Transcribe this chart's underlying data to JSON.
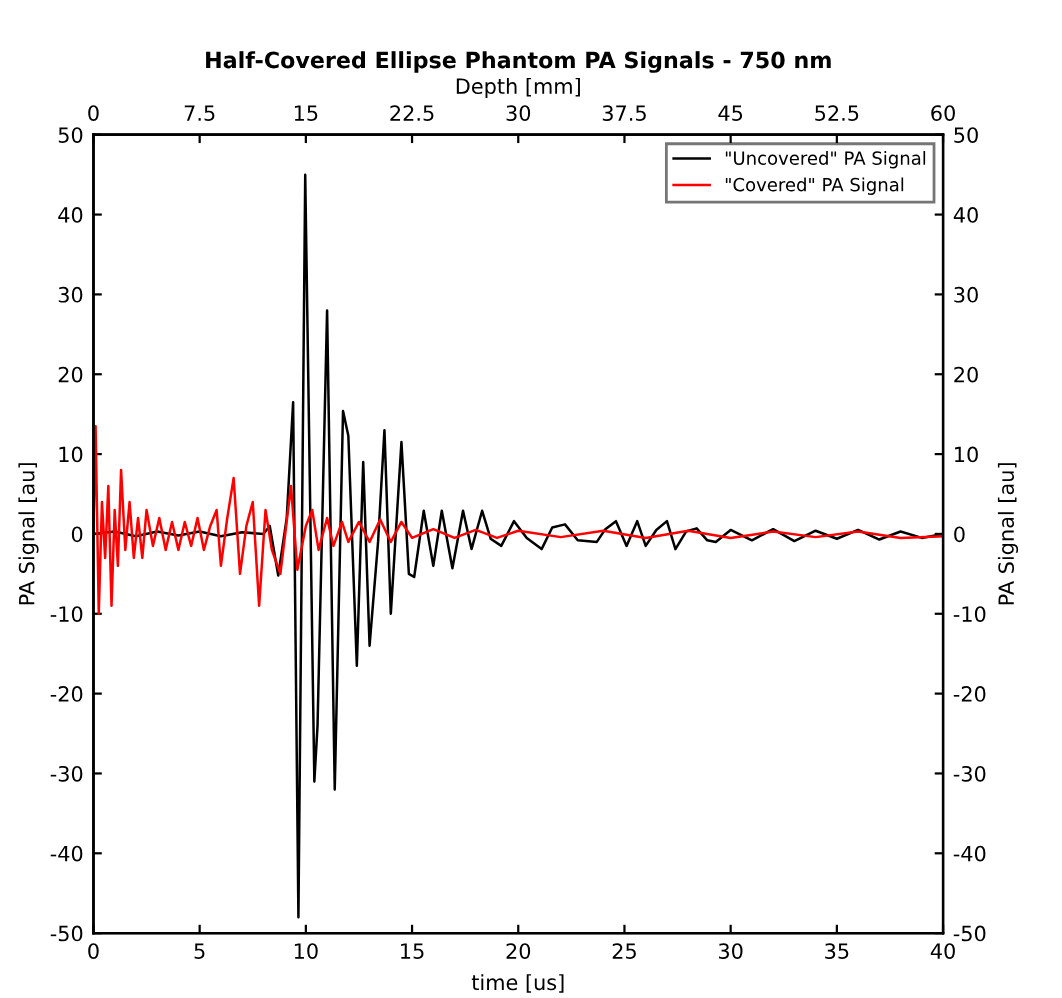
{
  "chart_data": {
    "type": "line",
    "title": "Half-Covered Ellipse Phantom PA Signals - 750 nm",
    "xlabel": "time [us]",
    "ylabel": "PA Signal [au]",
    "y2label": "PA Signal [au]",
    "x2label": "Depth [mm]",
    "xlim": [
      0,
      40
    ],
    "xticks": [
      0,
      5,
      10,
      15,
      20,
      25,
      30,
      35,
      40
    ],
    "ylim": [
      -50,
      50
    ],
    "yticks": [
      -50,
      -40,
      -30,
      -20,
      -10,
      0,
      10,
      20,
      30,
      40,
      50
    ],
    "y2lim": [
      -50,
      50
    ],
    "y2ticks": [
      -50,
      -40,
      -30,
      -20,
      -10,
      0,
      10,
      20,
      30,
      40,
      50
    ],
    "x2lim": [
      0,
      60
    ],
    "x2ticks": [
      0,
      7.5,
      15,
      22.5,
      30,
      37.5,
      45,
      52.5,
      60
    ],
    "grid": false,
    "legend": "top right",
    "marker": "none",
    "line_style": "solid",
    "series": [
      {
        "name": "\"Uncovered\" PA Signal",
        "color": "#000000",
        "x": [
          0,
          1,
          2,
          3,
          4,
          5,
          6,
          7,
          8,
          8.3,
          8.7,
          9.1,
          9.4,
          9.65,
          9.97,
          10.4,
          10.55,
          11.0,
          11.36,
          11.75,
          12.0,
          12.4,
          12.7,
          13.0,
          13.4,
          13.7,
          14.0,
          14.5,
          14.85,
          15.1,
          15.55,
          16.0,
          16.4,
          16.9,
          17.4,
          17.8,
          18.3,
          18.7,
          19.2,
          19.8,
          20.4,
          21.1,
          21.6,
          22.2,
          22.8,
          23.7,
          24.1,
          24.6,
          25.1,
          25.6,
          26.0,
          26.5,
          27.0,
          27.4,
          27.9,
          28.4,
          28.9,
          29.3,
          30,
          31,
          32,
          33,
          34,
          35,
          36,
          37,
          38,
          39,
          40
        ],
        "values": [
          0,
          0.3,
          -0.3,
          0.3,
          -0.2,
          0.3,
          -0.3,
          0.2,
          0,
          1,
          -5.2,
          2,
          16.5,
          -48,
          45,
          -31,
          -24,
          28,
          -32,
          15.4,
          12.3,
          -16.5,
          9,
          -14,
          -1,
          13,
          -10,
          11.5,
          -5,
          -5.4,
          2.9,
          -4,
          2.9,
          -4.3,
          2.9,
          -1.9,
          2.9,
          -0.6,
          -1.5,
          1.6,
          -0.5,
          -1.9,
          0.8,
          1.2,
          -0.8,
          -1,
          0.6,
          1.6,
          -1.5,
          1.6,
          -1.5,
          0.5,
          1.6,
          -1.9,
          0.3,
          0.7,
          -0.8,
          -1,
          0.5,
          -0.8,
          0.6,
          -0.9,
          0.4,
          -0.6,
          0.5,
          -0.7,
          0.3,
          -0.5,
          0
        ]
      },
      {
        "name": "\"Covered\" PA Signal",
        "color": "#ff0000",
        "x": [
          0,
          0.1,
          0.25,
          0.4,
          0.55,
          0.7,
          0.85,
          1.0,
          1.15,
          1.3,
          1.5,
          1.7,
          1.9,
          2.1,
          2.3,
          2.5,
          2.8,
          3.1,
          3.4,
          3.7,
          4.0,
          4.3,
          4.6,
          4.9,
          5.2,
          5.5,
          5.8,
          6.0,
          6.3,
          6.6,
          6.9,
          7.2,
          7.5,
          7.8,
          8.1,
          8.4,
          8.8,
          9.3,
          9.6,
          10.0,
          10.3,
          10.6,
          11.0,
          11.3,
          11.7,
          12.0,
          12.5,
          13.0,
          13.5,
          14.0,
          14.5,
          15,
          16,
          17,
          18,
          19,
          20,
          22,
          24,
          26,
          28,
          30,
          32,
          34,
          36,
          38,
          40
        ],
        "values": [
          0,
          13.5,
          -10,
          4,
          -3,
          6,
          -9,
          3,
          -4,
          8,
          -2,
          4,
          -3,
          2,
          -3,
          3,
          -1.5,
          2,
          -2,
          1.5,
          -2,
          1.5,
          -1.5,
          2,
          -2,
          1,
          3,
          -4,
          2,
          7,
          -5,
          1,
          4,
          -9,
          3,
          -2,
          -5,
          6,
          -4.5,
          1,
          3,
          -2,
          2,
          -1.5,
          1.5,
          -1,
          1.5,
          -1,
          1.8,
          -1,
          1.5,
          -0.5,
          0.6,
          -0.5,
          0.5,
          -0.5,
          0.4,
          -0.4,
          0.4,
          -0.5,
          0.4,
          -0.5,
          0.3,
          -0.4,
          0.3,
          -0.5,
          -0.3
        ]
      }
    ]
  }
}
